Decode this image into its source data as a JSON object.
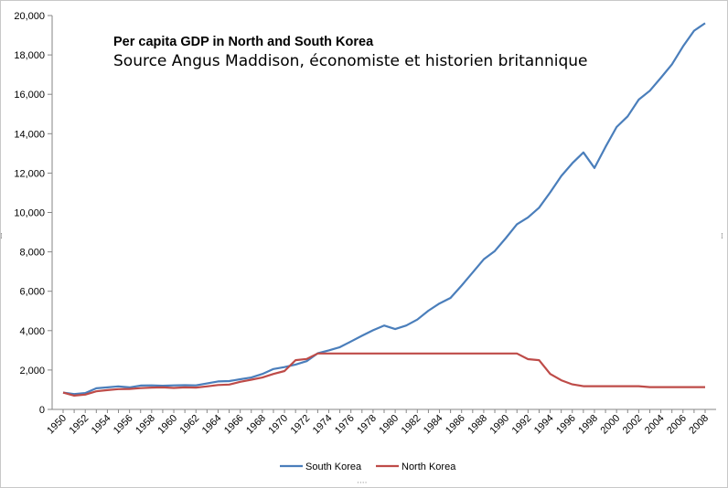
{
  "chart_data": {
    "type": "line",
    "title": "Per capita GDP in North and South Korea",
    "subtitle": "Source Angus Maddison, économiste et historien britannique",
    "xlabel": "",
    "ylabel": "",
    "ylim": [
      0,
      20000
    ],
    "y_ticks": [
      "0",
      "2,000",
      "4,000",
      "6,000",
      "8,000",
      "10,000",
      "12,000",
      "14,000",
      "16,000",
      "18,000",
      "20,000"
    ],
    "x_ticks": [
      "1950",
      "1952",
      "1954",
      "1956",
      "1958",
      "1960",
      "1962",
      "1964",
      "1966",
      "1968",
      "1970",
      "1972",
      "1974",
      "1976",
      "1978",
      "1980",
      "1982",
      "1984",
      "1986",
      "1988",
      "1990",
      "1992",
      "1994",
      "1996",
      "1998",
      "2000",
      "2002",
      "2004",
      "2006",
      "2008"
    ],
    "grid": false,
    "legend_position": "bottom",
    "x": [
      1950,
      1951,
      1952,
      1953,
      1954,
      1955,
      1956,
      1957,
      1958,
      1959,
      1960,
      1961,
      1962,
      1963,
      1964,
      1965,
      1966,
      1967,
      1968,
      1969,
      1970,
      1971,
      1972,
      1973,
      1974,
      1975,
      1976,
      1977,
      1978,
      1979,
      1980,
      1981,
      1982,
      1983,
      1984,
      1985,
      1986,
      1987,
      1988,
      1989,
      1990,
      1991,
      1992,
      1993,
      1994,
      1995,
      1996,
      1997,
      1998,
      1999,
      2000,
      2001,
      2002,
      2003,
      2004,
      2005,
      2006,
      2007,
      2008
    ],
    "series": [
      {
        "name": "South Korea",
        "color": "#4a7ebb",
        "values": [
          854,
          780,
          830,
          1070,
          1120,
          1170,
          1120,
          1210,
          1220,
          1200,
          1220,
          1230,
          1220,
          1320,
          1420,
          1440,
          1530,
          1620,
          1800,
          2050,
          2150,
          2280,
          2450,
          2850,
          3000,
          3160,
          3450,
          3740,
          4020,
          4260,
          4080,
          4260,
          4560,
          5010,
          5380,
          5660,
          6290,
          6950,
          7620,
          8040,
          8700,
          9400,
          9750,
          10240,
          11020,
          11850,
          12500,
          13050,
          12260,
          13330,
          14340,
          14880,
          15730,
          16180,
          16840,
          17520,
          18430,
          19230,
          19610
        ]
      },
      {
        "name": "North Korea",
        "color": "#be4b48",
        "values": [
          854,
          700,
          750,
          920,
          980,
          1030,
          1040,
          1080,
          1110,
          1120,
          1090,
          1120,
          1110,
          1170,
          1240,
          1260,
          1400,
          1510,
          1620,
          1800,
          1950,
          2500,
          2560,
          2840,
          2840,
          2840,
          2840,
          2840,
          2840,
          2840,
          2840,
          2840,
          2840,
          2840,
          2840,
          2840,
          2840,
          2840,
          2840,
          2840,
          2840,
          2840,
          2550,
          2500,
          1800,
          1480,
          1270,
          1180,
          1180,
          1180,
          1180,
          1180,
          1180,
          1130,
          1130,
          1130,
          1130,
          1130,
          1130
        ]
      }
    ]
  }
}
